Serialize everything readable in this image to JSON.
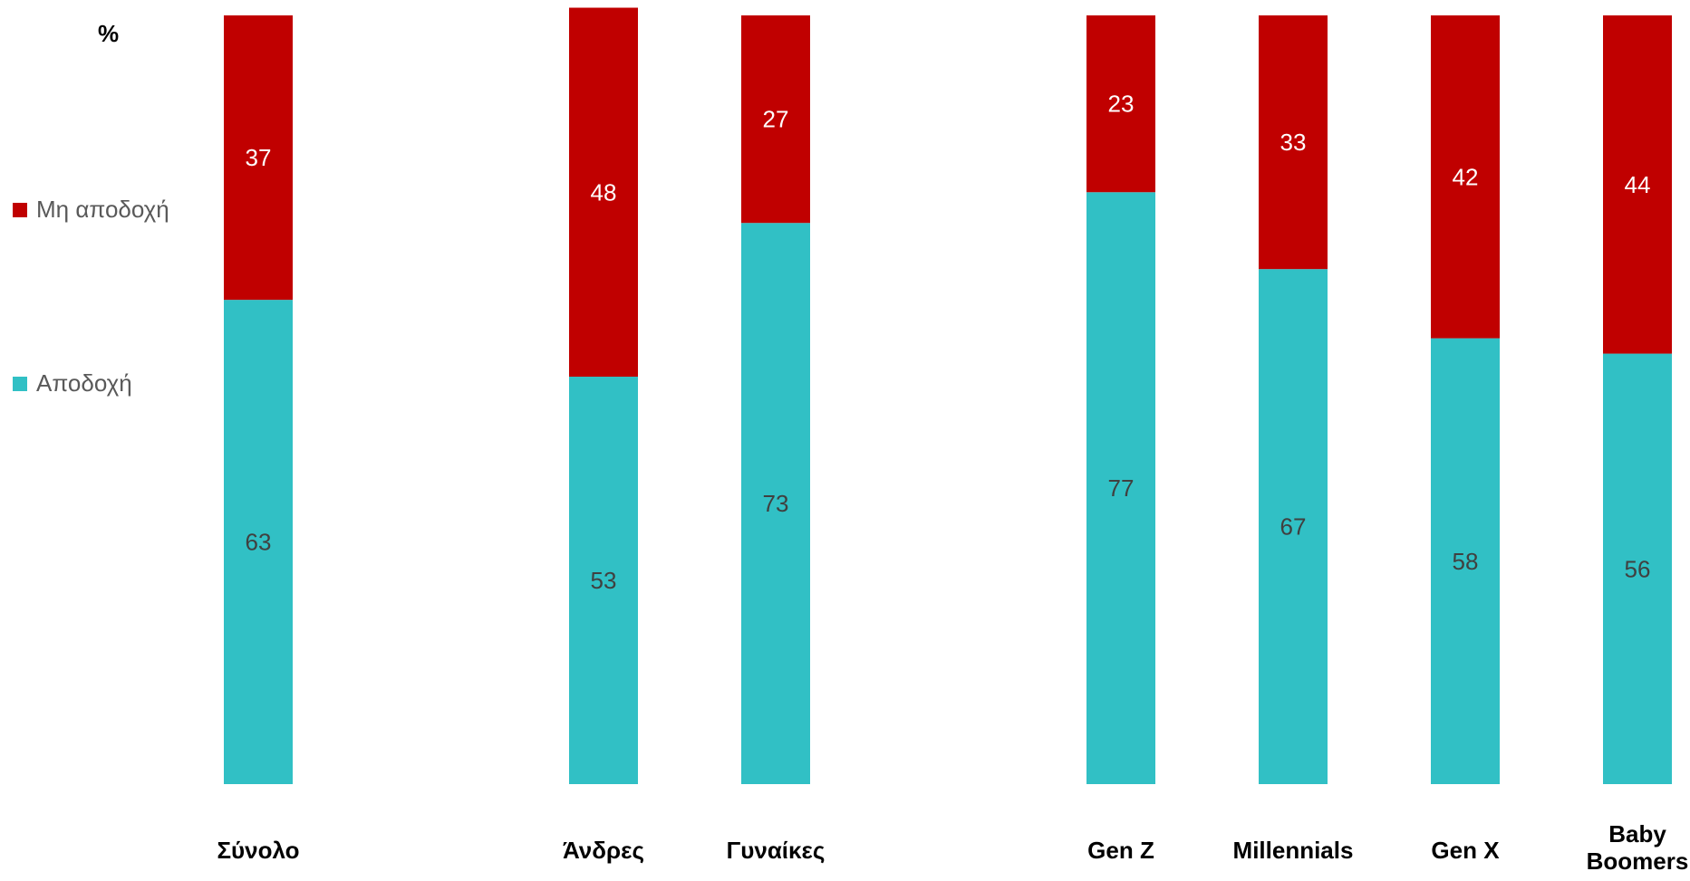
{
  "chart_data": {
    "type": "bar",
    "stacked": true,
    "unit_label": "%",
    "categories": [
      "Σύνολο",
      "Άνδρες",
      "Γυναίκες",
      "Gen Z",
      "Millennials",
      "Gen X",
      "Baby Boomers"
    ],
    "category_lines": [
      [
        "Σύνολο"
      ],
      [
        "Άνδρες"
      ],
      [
        "Γυναίκες"
      ],
      [
        "Gen Z"
      ],
      [
        "Millennials"
      ],
      [
        "Gen X"
      ],
      [
        "Baby",
        "Boomers"
      ]
    ],
    "groups": [
      [
        "Σύνολο"
      ],
      [
        "Άνδρες",
        "Γυναίκες"
      ],
      [
        "Gen Z",
        "Millennials",
        "Gen X",
        "Baby Boomers"
      ]
    ],
    "series": [
      {
        "name": "Αποδοχή",
        "color": "#31C0C5",
        "values": [
          63,
          53,
          73,
          77,
          67,
          58,
          56
        ],
        "label_color": "#404040"
      },
      {
        "name": "Μη αποδοχή",
        "color": "#C00000",
        "values": [
          37,
          48,
          27,
          23,
          33,
          42,
          44
        ],
        "label_color": "#FFFFFF"
      }
    ],
    "ylim": [
      0,
      100
    ],
    "grid": false,
    "legend_position": "left"
  }
}
